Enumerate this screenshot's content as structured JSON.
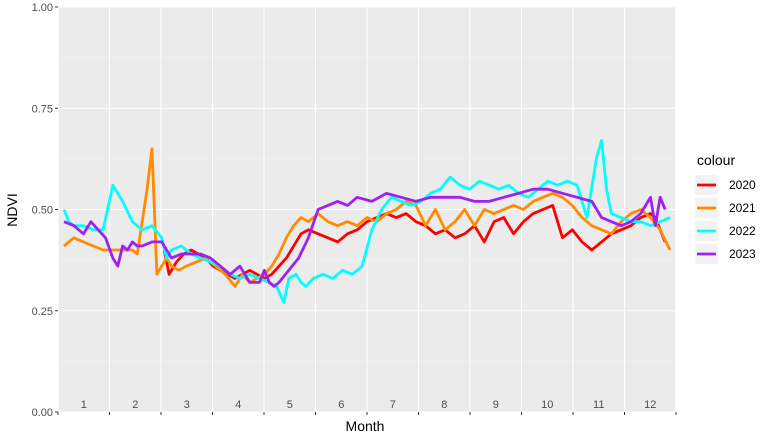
{
  "chart_data": {
    "type": "line",
    "title": "",
    "xlabel": "Month",
    "ylabel": "NDVI",
    "ylim": [
      0,
      1
    ],
    "xlim": [
      0,
      12
    ],
    "yticks": [
      "0.00",
      "0.25",
      "0.50",
      "0.75",
      "1.00"
    ],
    "month_labels": [
      "1",
      "2",
      "3",
      "4",
      "5",
      "6",
      "7",
      "8",
      "9",
      "10",
      "11",
      "12"
    ],
    "grid": true,
    "legend": {
      "title": "colour",
      "placement": "right"
    },
    "series": [
      {
        "name": "2020",
        "color": "#ff0000",
        "x": [
          2.05,
          2.15,
          2.3,
          2.45,
          2.6,
          2.75,
          2.9,
          3.05,
          3.2,
          3.35,
          3.5,
          3.65,
          3.8,
          3.95,
          4.1,
          4.25,
          4.4,
          4.55,
          4.7,
          4.85,
          5.0,
          5.2,
          5.4,
          5.6,
          5.8,
          6.0,
          6.2,
          6.4,
          6.6,
          6.8,
          7.0,
          7.2,
          7.4,
          7.6,
          7.8,
          8.0,
          8.2,
          8.4,
          8.6,
          8.8,
          9.0,
          9.2,
          9.4,
          9.6,
          9.8,
          10.0,
          10.2,
          10.4,
          10.6,
          10.8,
          11.0,
          11.2,
          11.4,
          11.6,
          11.8,
          12.0,
          12.1,
          12.2,
          12.3
        ],
        "y": [
          0.4,
          0.34,
          0.37,
          0.39,
          0.4,
          0.39,
          0.38,
          0.36,
          0.35,
          0.34,
          0.33,
          0.34,
          0.35,
          0.34,
          0.33,
          0.34,
          0.36,
          0.38,
          0.41,
          0.44,
          0.45,
          0.44,
          0.43,
          0.42,
          0.44,
          0.45,
          0.47,
          0.48,
          0.49,
          0.48,
          0.49,
          0.47,
          0.46,
          0.44,
          0.45,
          0.43,
          0.44,
          0.46,
          0.42,
          0.47,
          0.48,
          0.44,
          0.47,
          0.49,
          0.5,
          0.51,
          0.43,
          0.45,
          0.42,
          0.4,
          0.42,
          0.44,
          0.45,
          0.46,
          0.48,
          0.49,
          0.48,
          0.45,
          0.42
        ]
      },
      {
        "name": "2021",
        "color": "#ff8c00",
        "x": [
          0.0,
          0.2,
          0.4,
          0.6,
          0.8,
          1.0,
          1.2,
          1.4,
          1.5,
          1.6,
          1.7,
          1.8,
          1.9,
          2.0,
          2.1,
          2.2,
          2.35,
          2.5,
          2.7,
          2.9,
          3.1,
          3.3,
          3.5,
          3.65,
          3.8,
          3.95,
          4.1,
          4.25,
          4.4,
          4.55,
          4.7,
          4.85,
          5.0,
          5.2,
          5.4,
          5.6,
          5.8,
          6.0,
          6.2,
          6.4,
          6.6,
          6.8,
          7.0,
          7.2,
          7.4,
          7.6,
          7.8,
          8.0,
          8.2,
          8.4,
          8.6,
          8.8,
          9.0,
          9.2,
          9.4,
          9.6,
          9.8,
          10.0,
          10.2,
          10.4,
          10.6,
          10.8,
          11.0,
          11.2,
          11.4,
          11.6,
          11.8,
          12.0,
          12.2,
          12.4
        ],
        "y": [
          0.41,
          0.43,
          0.42,
          0.41,
          0.4,
          0.4,
          0.4,
          0.4,
          0.39,
          0.47,
          0.55,
          0.65,
          0.34,
          0.36,
          0.38,
          0.36,
          0.35,
          0.36,
          0.37,
          0.38,
          0.36,
          0.34,
          0.31,
          0.34,
          0.32,
          0.33,
          0.34,
          0.36,
          0.39,
          0.43,
          0.46,
          0.48,
          0.47,
          0.49,
          0.47,
          0.46,
          0.47,
          0.46,
          0.48,
          0.47,
          0.49,
          0.5,
          0.52,
          0.51,
          0.46,
          0.5,
          0.45,
          0.47,
          0.5,
          0.46,
          0.5,
          0.49,
          0.5,
          0.51,
          0.5,
          0.52,
          0.53,
          0.54,
          0.53,
          0.51,
          0.48,
          0.46,
          0.45,
          0.44,
          0.47,
          0.49,
          0.5,
          0.48,
          0.45,
          0.4
        ]
      },
      {
        "name": "2022",
        "color": "#00ffff",
        "x": [
          0.0,
          0.1,
          0.2,
          0.4,
          0.6,
          0.8,
          1.0,
          1.2,
          1.4,
          1.6,
          1.8,
          2.0,
          2.1,
          2.2,
          2.4,
          2.6,
          2.8,
          3.0,
          3.2,
          3.4,
          3.6,
          3.8,
          4.0,
          4.2,
          4.35,
          4.5,
          4.6,
          4.75,
          4.85,
          4.95,
          5.1,
          5.3,
          5.5,
          5.7,
          5.9,
          6.1,
          6.3,
          6.5,
          6.7,
          6.9,
          7.1,
          7.3,
          7.5,
          7.7,
          7.9,
          8.1,
          8.3,
          8.5,
          8.7,
          8.9,
          9.1,
          9.3,
          9.5,
          9.7,
          9.9,
          10.1,
          10.3,
          10.5,
          10.7,
          10.9,
          11.0,
          11.1,
          11.2,
          11.4,
          11.6,
          11.8,
          12.0,
          12.2,
          12.4
        ],
        "y": [
          0.5,
          0.47,
          0.46,
          0.46,
          0.45,
          0.45,
          0.56,
          0.52,
          0.47,
          0.45,
          0.46,
          0.43,
          0.38,
          0.4,
          0.41,
          0.39,
          0.38,
          0.37,
          0.36,
          0.34,
          0.33,
          0.34,
          0.33,
          0.32,
          0.31,
          0.27,
          0.33,
          0.34,
          0.32,
          0.31,
          0.33,
          0.34,
          0.33,
          0.35,
          0.34,
          0.36,
          0.45,
          0.5,
          0.53,
          0.52,
          0.51,
          0.52,
          0.54,
          0.55,
          0.58,
          0.56,
          0.55,
          0.57,
          0.56,
          0.55,
          0.56,
          0.54,
          0.53,
          0.55,
          0.57,
          0.56,
          0.57,
          0.56,
          0.48,
          0.63,
          0.67,
          0.55,
          0.49,
          0.48,
          0.47,
          0.47,
          0.46,
          0.47,
          0.48
        ]
      },
      {
        "name": "2023",
        "color": "#a020f0",
        "x": [
          0.0,
          0.2,
          0.4,
          0.55,
          0.7,
          0.85,
          1.0,
          1.1,
          1.2,
          1.3,
          1.4,
          1.5,
          1.6,
          1.8,
          2.0,
          2.2,
          2.4,
          2.6,
          2.8,
          3.0,
          3.2,
          3.4,
          3.6,
          3.8,
          4.0,
          4.1,
          4.2,
          4.3,
          4.4,
          4.6,
          4.8,
          5.0,
          5.2,
          5.4,
          5.6,
          5.8,
          6.0,
          6.3,
          6.6,
          6.9,
          7.2,
          7.5,
          7.8,
          8.1,
          8.4,
          8.7,
          9.0,
          9.3,
          9.6,
          9.9,
          10.2,
          10.5,
          10.8,
          11.0,
          11.2,
          11.4,
          11.6,
          11.8,
          12.0,
          12.1,
          12.2,
          12.3
        ],
        "y": [
          0.47,
          0.46,
          0.44,
          0.47,
          0.45,
          0.43,
          0.38,
          0.36,
          0.41,
          0.4,
          0.42,
          0.41,
          0.41,
          0.42,
          0.42,
          0.38,
          0.39,
          0.39,
          0.39,
          0.38,
          0.36,
          0.34,
          0.36,
          0.32,
          0.32,
          0.35,
          0.32,
          0.31,
          0.32,
          0.35,
          0.38,
          0.43,
          0.5,
          0.51,
          0.52,
          0.51,
          0.53,
          0.52,
          0.54,
          0.53,
          0.52,
          0.53,
          0.53,
          0.53,
          0.52,
          0.52,
          0.53,
          0.54,
          0.55,
          0.55,
          0.54,
          0.53,
          0.52,
          0.48,
          0.47,
          0.46,
          0.47,
          0.49,
          0.53,
          0.46,
          0.53,
          0.5
        ]
      }
    ]
  }
}
